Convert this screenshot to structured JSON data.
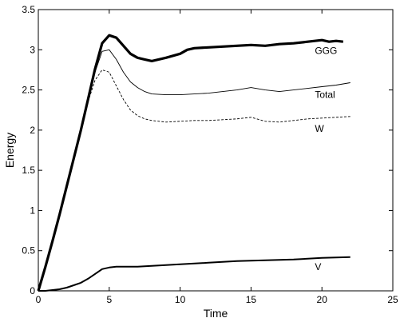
{
  "chart_data": {
    "type": "line",
    "title": "",
    "xlabel": "Time",
    "ylabel": "Energy",
    "xlim": [
      0,
      25
    ],
    "ylim": [
      0,
      3.5
    ],
    "xticks": [
      0,
      5,
      10,
      15,
      20,
      25
    ],
    "yticks": [
      0,
      0.5,
      1,
      1.5,
      2,
      2.5,
      3,
      3.5
    ],
    "grid": false,
    "legend": "none",
    "series": [
      {
        "name": "GGG",
        "style": "thick-solid",
        "label_at": [
          19.5,
          2.95
        ],
        "x": [
          0,
          0.5,
          1,
          1.5,
          2,
          2.5,
          3,
          3.5,
          4,
          4.5,
          5,
          5.5,
          6,
          6.5,
          7,
          7.5,
          8,
          9,
          10,
          10.5,
          11,
          12,
          13,
          14,
          15,
          16,
          17,
          18,
          19,
          20,
          20.5,
          21,
          21.5
        ],
        "y": [
          0,
          0.3,
          0.62,
          0.95,
          1.3,
          1.65,
          2.0,
          2.38,
          2.76,
          3.08,
          3.18,
          3.15,
          3.05,
          2.95,
          2.9,
          2.88,
          2.86,
          2.9,
          2.95,
          3.0,
          3.02,
          3.03,
          3.04,
          3.05,
          3.06,
          3.05,
          3.07,
          3.08,
          3.1,
          3.12,
          3.1,
          3.11,
          3.1
        ]
      },
      {
        "name": "Total",
        "style": "thin-solid",
        "label_at": [
          19.5,
          2.4
        ],
        "x": [
          0,
          0.5,
          1,
          1.5,
          2,
          2.5,
          3,
          3.5,
          4,
          4.5,
          5,
          5.5,
          6,
          6.5,
          7,
          7.5,
          8,
          9,
          10,
          11,
          12,
          13,
          14,
          15,
          16,
          17,
          18,
          19,
          20,
          21,
          22
        ],
        "y": [
          0,
          0.3,
          0.62,
          0.95,
          1.3,
          1.65,
          2.0,
          2.38,
          2.72,
          2.98,
          3.0,
          2.88,
          2.72,
          2.6,
          2.53,
          2.48,
          2.45,
          2.44,
          2.44,
          2.45,
          2.46,
          2.48,
          2.5,
          2.53,
          2.5,
          2.48,
          2.5,
          2.52,
          2.54,
          2.56,
          2.59
        ]
      },
      {
        "name": "W",
        "style": "dashed",
        "label_at": [
          19.5,
          1.98
        ],
        "x": [
          0,
          0.5,
          1,
          1.5,
          2,
          2.5,
          3,
          3.5,
          4,
          4.5,
          5,
          5.5,
          6,
          6.5,
          7,
          7.5,
          8,
          9,
          10,
          11,
          12,
          13,
          14,
          15,
          16,
          17,
          18,
          19,
          20,
          21,
          22
        ],
        "y": [
          0,
          0.3,
          0.62,
          0.95,
          1.3,
          1.65,
          2.0,
          2.35,
          2.62,
          2.75,
          2.72,
          2.55,
          2.38,
          2.25,
          2.18,
          2.14,
          2.12,
          2.1,
          2.11,
          2.12,
          2.12,
          2.13,
          2.14,
          2.16,
          2.11,
          2.1,
          2.12,
          2.14,
          2.15,
          2.16,
          2.17
        ]
      },
      {
        "name": "V",
        "style": "medium-solid",
        "label_at": [
          19.5,
          0.26
        ],
        "x": [
          0,
          0.5,
          1,
          1.5,
          2,
          2.5,
          3,
          3.5,
          4,
          4.5,
          5,
          5.5,
          6,
          7,
          8,
          10,
          12,
          14,
          16,
          18,
          20,
          22
        ],
        "y": [
          0,
          0.0,
          0.01,
          0.02,
          0.04,
          0.07,
          0.1,
          0.15,
          0.21,
          0.27,
          0.29,
          0.3,
          0.3,
          0.3,
          0.31,
          0.33,
          0.35,
          0.37,
          0.38,
          0.39,
          0.41,
          0.42
        ]
      }
    ]
  }
}
